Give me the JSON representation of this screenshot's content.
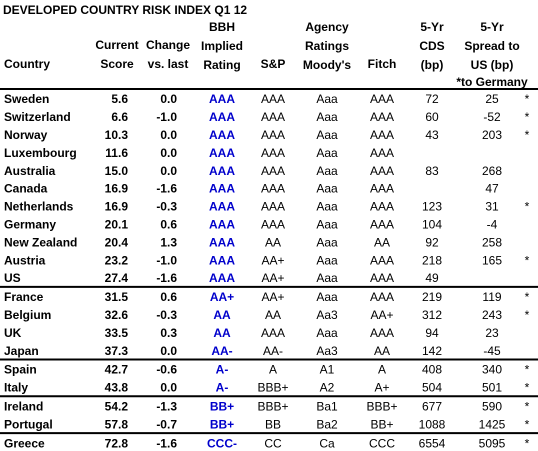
{
  "title": "DEVELOPED COUNTRY RISK INDEX Q1 12",
  "header": {
    "columns": [
      [
        "Country"
      ],
      [
        "Current",
        "Score"
      ],
      [
        "Change",
        "vs. last"
      ],
      [
        "BBH",
        "Implied",
        "Rating"
      ],
      [
        "S&P"
      ],
      [
        "Agency",
        "Ratings",
        "Moody's"
      ],
      [
        "Fitch"
      ],
      [
        "5-Yr",
        "CDS",
        "(bp)"
      ],
      [
        "5-Yr",
        "Spread to",
        "US (bp)",
        "*to Germany"
      ]
    ]
  },
  "groups": [
    [
      [
        "Sweden",
        "5.6",
        "0.0",
        "AAA",
        "AAA",
        "Aaa",
        "AAA",
        "72",
        "25",
        "*"
      ],
      [
        "Switzerland",
        "6.6",
        "-1.0",
        "AAA",
        "AAA",
        "Aaa",
        "AAA",
        "60",
        "-52",
        "*"
      ],
      [
        "Norway",
        "10.3",
        "0.0",
        "AAA",
        "AAA",
        "Aaa",
        "AAA",
        "43",
        "203",
        "*"
      ],
      [
        "Luxembourg",
        "11.6",
        "0.0",
        "AAA",
        "AAA",
        "Aaa",
        "AAA",
        null,
        null,
        null
      ],
      [
        "Australia",
        "15.0",
        "0.0",
        "AAA",
        "AAA",
        "Aaa",
        "AAA",
        "83",
        "268",
        null
      ],
      [
        "Canada",
        "16.9",
        "-1.6",
        "AAA",
        "AAA",
        "Aaa",
        "AAA",
        null,
        "47",
        null
      ],
      [
        "Netherlands",
        "16.9",
        "-0.3",
        "AAA",
        "AAA",
        "Aaa",
        "AAA",
        "123",
        "31",
        "*"
      ],
      [
        "Germany",
        "20.1",
        "0.6",
        "AAA",
        "AAA",
        "Aaa",
        "AAA",
        "104",
        "-4",
        null
      ],
      [
        "New Zealand",
        "20.4",
        "1.3",
        "AAA",
        "AA",
        "Aaa",
        "AA",
        "92",
        "258",
        null
      ],
      [
        "Austria",
        "23.2",
        "-1.0",
        "AAA",
        "AA+",
        "Aaa",
        "AAA",
        "218",
        "165",
        "*"
      ],
      [
        "US",
        "27.4",
        "-1.6",
        "AAA",
        "AA+",
        "Aaa",
        "AAA",
        "49",
        null,
        null
      ]
    ],
    [
      [
        "France",
        "31.5",
        "0.6",
        "AA+",
        "AA+",
        "Aaa",
        "AAA",
        "219",
        "119",
        "*"
      ],
      [
        "Belgium",
        "32.6",
        "-0.3",
        "AA",
        "AA",
        "Aa3",
        "AA+",
        "312",
        "243",
        "*"
      ],
      [
        "UK",
        "33.5",
        "0.3",
        "AA",
        "AAA",
        "Aaa",
        "AAA",
        "94",
        "23",
        null
      ],
      [
        "Japan",
        "37.3",
        "0.0",
        "AA-",
        "AA-",
        "Aa3",
        "AA",
        "142",
        "-45",
        null
      ]
    ],
    [
      [
        "Spain",
        "42.7",
        "-0.6",
        "A-",
        "A",
        "A1",
        "A",
        "408",
        "340",
        "*"
      ],
      [
        "Italy",
        "43.8",
        "0.0",
        "A-",
        "BBB+",
        "A2",
        "A+",
        "504",
        "501",
        "*"
      ]
    ],
    [
      [
        "Ireland",
        "54.2",
        "-1.3",
        "BB+",
        "BBB+",
        "Ba1",
        "BBB+",
        "677",
        "590",
        "*"
      ],
      [
        "Portugal",
        "57.8",
        "-0.7",
        "BB+",
        "BB",
        "Ba2",
        "BB+",
        "1088",
        "1425",
        "*"
      ]
    ],
    [
      [
        "Greece",
        "72.8",
        "-1.6",
        "CCC-",
        "CC",
        "Ca",
        "CCC",
        "6554",
        "5095",
        "*"
      ]
    ]
  ]
}
